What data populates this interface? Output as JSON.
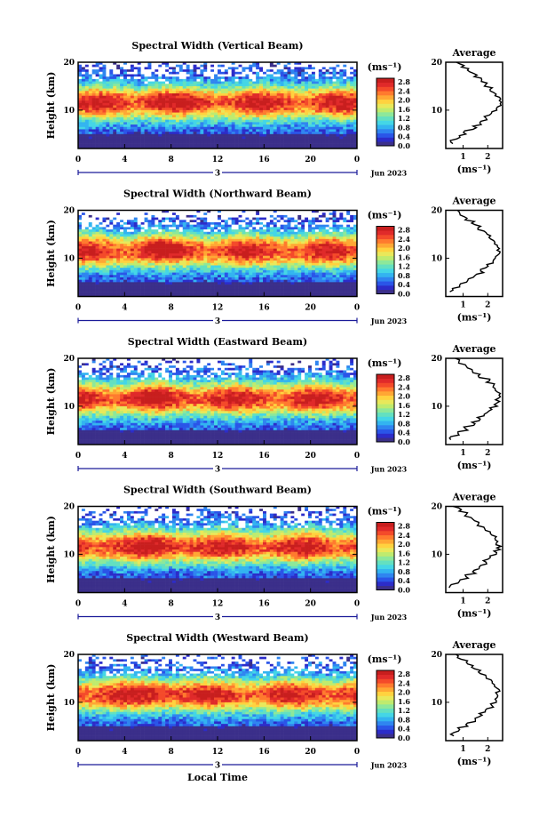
{
  "colorbar": {
    "unit_label": "(ms⁻¹)",
    "ticks": [
      "0.0",
      "0.4",
      "0.8",
      "1.2",
      "1.6",
      "2.0",
      "2.4",
      "2.8"
    ],
    "colors": [
      "#3b2f8a",
      "#2c2cc9",
      "#2a55e8",
      "#2f85f0",
      "#33b4f0",
      "#44d6e6",
      "#63e0c0",
      "#8de89a",
      "#bfeb6e",
      "#e9e85a",
      "#ffd23f",
      "#ffa734",
      "#ff7a2e",
      "#f44a2a",
      "#e02a2a",
      "#c81e1e"
    ]
  },
  "x_ticks": [
    "0",
    "4",
    "8",
    "12",
    "16",
    "20",
    "0"
  ],
  "date_label": "Jun 2023",
  "day_label": "3",
  "xlabel": "Local Time",
  "profile_title": "Average",
  "profile_xlabel": "(ms⁻¹)",
  "chart_data": [
    {
      "type": "heatmap",
      "title": "Spectral Width (Vertical Beam)",
      "ylabel": "Height (km)",
      "y_ticks": [
        "20",
        "10"
      ],
      "ylim": [
        2,
        20
      ],
      "xlim": [
        0,
        24
      ],
      "clim": [
        0,
        2.8
      ],
      "profile": {
        "title": "Average",
        "x_ticks": [
          "1",
          "2"
        ],
        "xlim": [
          0.3,
          2.6
        ],
        "height_km": [
          3,
          4,
          5,
          6,
          7,
          8,
          9,
          10,
          11,
          12,
          13,
          14,
          15,
          16,
          17,
          18,
          19,
          20
        ],
        "width_ms": [
          0.5,
          0.8,
          1.1,
          1.45,
          1.7,
          1.9,
          2.1,
          2.35,
          2.5,
          2.45,
          2.3,
          2.15,
          1.95,
          1.75,
          1.5,
          1.2,
          0.95,
          0.7
        ]
      }
    },
    {
      "type": "heatmap",
      "title": "Spectral Width (Northward Beam)",
      "ylabel": "Height (km)",
      "y_ticks": [
        "20",
        "10"
      ],
      "ylim": [
        2,
        20
      ],
      "xlim": [
        0,
        24
      ],
      "clim": [
        0,
        2.8
      ],
      "profile": {
        "title": "Average",
        "x_ticks": [
          "1",
          "2"
        ],
        "xlim": [
          0.3,
          2.6
        ],
        "height_km": [
          3,
          4,
          5,
          6,
          7,
          8,
          9,
          10,
          11,
          12,
          13,
          14,
          15,
          16,
          17,
          18,
          19,
          20
        ],
        "width_ms": [
          0.5,
          0.85,
          1.2,
          1.5,
          1.75,
          1.95,
          2.15,
          2.35,
          2.45,
          2.4,
          2.3,
          2.1,
          1.9,
          1.65,
          1.4,
          1.1,
          0.9,
          0.7
        ]
      }
    },
    {
      "type": "heatmap",
      "title": "Spectral Width (Eastward Beam)",
      "ylabel": "Height (km)",
      "y_ticks": [
        "20",
        "10"
      ],
      "ylim": [
        2,
        20
      ],
      "xlim": [
        0,
        24
      ],
      "clim": [
        0,
        2.8
      ],
      "profile": {
        "title": "Average",
        "x_ticks": [
          "1",
          "2"
        ],
        "xlim": [
          0.3,
          2.6
        ],
        "height_km": [
          3,
          4,
          5,
          6,
          7,
          8,
          9,
          10,
          11,
          12,
          13,
          14,
          15,
          16,
          17,
          18,
          19,
          20
        ],
        "width_ms": [
          0.5,
          0.8,
          1.1,
          1.4,
          1.65,
          1.9,
          2.1,
          2.3,
          2.4,
          2.45,
          2.35,
          2.2,
          2.0,
          1.7,
          1.4,
          1.1,
          0.85,
          0.6
        ]
      }
    },
    {
      "type": "heatmap",
      "title": "Spectral Width (Southward Beam)",
      "ylabel": "Height (km)",
      "y_ticks": [
        "20",
        "10"
      ],
      "ylim": [
        2,
        20
      ],
      "xlim": [
        0,
        24
      ],
      "clim": [
        0,
        2.8
      ],
      "profile": {
        "title": "Average",
        "x_ticks": [
          "1",
          "2"
        ],
        "xlim": [
          0.3,
          2.6
        ],
        "height_km": [
          3,
          4,
          5,
          6,
          7,
          8,
          9,
          10,
          11,
          12,
          13,
          14,
          15,
          16,
          17,
          18,
          19,
          20
        ],
        "width_ms": [
          0.5,
          0.85,
          1.15,
          1.45,
          1.7,
          1.9,
          2.1,
          2.3,
          2.45,
          2.4,
          2.3,
          2.1,
          1.9,
          1.65,
          1.4,
          1.1,
          0.85,
          0.6
        ]
      }
    },
    {
      "type": "heatmap",
      "title": "Spectral Width (Westward Beam)",
      "ylabel": "Height (km)",
      "y_ticks": [
        "20",
        "10"
      ],
      "ylim": [
        2,
        20
      ],
      "xlim": [
        0,
        24
      ],
      "clim": [
        0,
        2.8
      ],
      "profile": {
        "title": "Average",
        "x_ticks": [
          "1",
          "2"
        ],
        "xlim": [
          0.3,
          2.6
        ],
        "height_km": [
          3,
          4,
          5,
          6,
          7,
          8,
          9,
          10,
          11,
          12,
          13,
          14,
          15,
          16,
          17,
          18,
          19,
          20
        ],
        "width_ms": [
          0.55,
          0.85,
          1.15,
          1.45,
          1.7,
          1.95,
          2.15,
          2.35,
          2.45,
          2.4,
          2.3,
          2.15,
          1.95,
          1.7,
          1.4,
          1.1,
          0.85,
          0.65
        ]
      }
    }
  ]
}
